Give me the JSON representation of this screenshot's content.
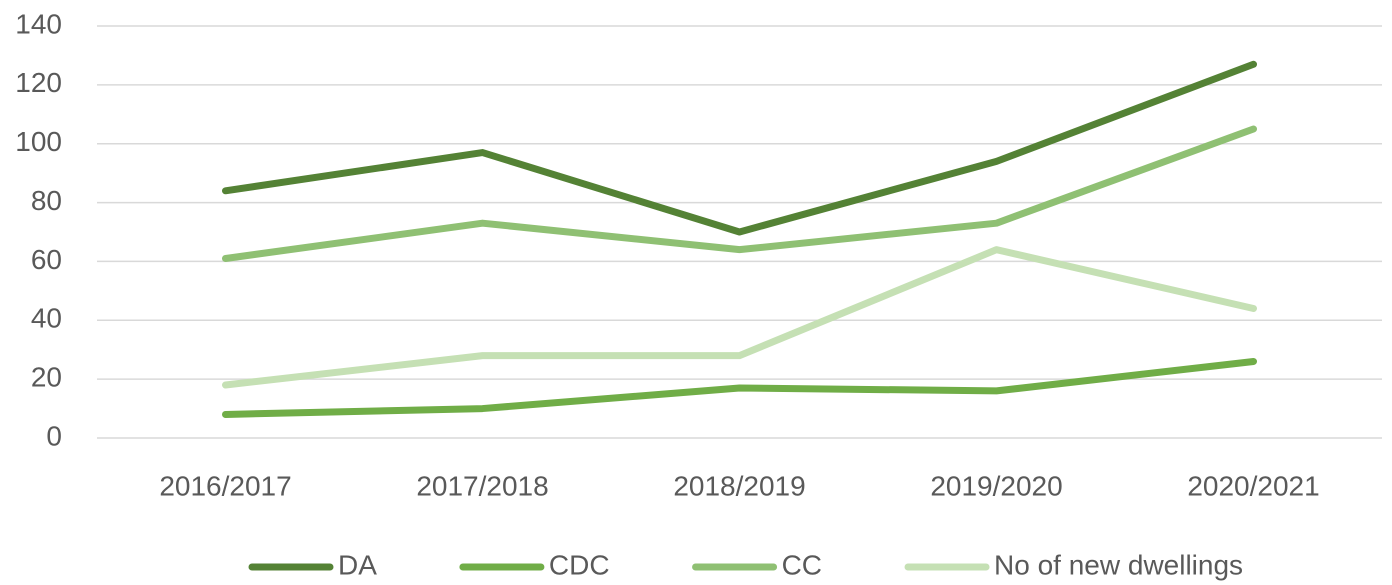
{
  "chart_data": {
    "type": "line",
    "categories": [
      "2016/2017",
      "2017/2018",
      "2018/2019",
      "2019/2020",
      "2020/2021"
    ],
    "series": [
      {
        "name": "DA",
        "color": "#548235",
        "values": [
          84,
          97,
          70,
          94,
          127
        ]
      },
      {
        "name": "CDC",
        "color": "#70ad47",
        "values": [
          8,
          10,
          17,
          16,
          26
        ]
      },
      {
        "name": "CC",
        "color": "#8fc073",
        "values": [
          61,
          73,
          64,
          73,
          105
        ]
      },
      {
        "name": "No of new dwellings",
        "color": "#c5e0b4",
        "values": [
          18,
          28,
          28,
          64,
          44
        ]
      }
    ],
    "ylim": [
      0,
      140
    ],
    "yticks": [
      0,
      20,
      40,
      60,
      80,
      100,
      120,
      140
    ],
    "grid": true,
    "legend": "bottom"
  }
}
